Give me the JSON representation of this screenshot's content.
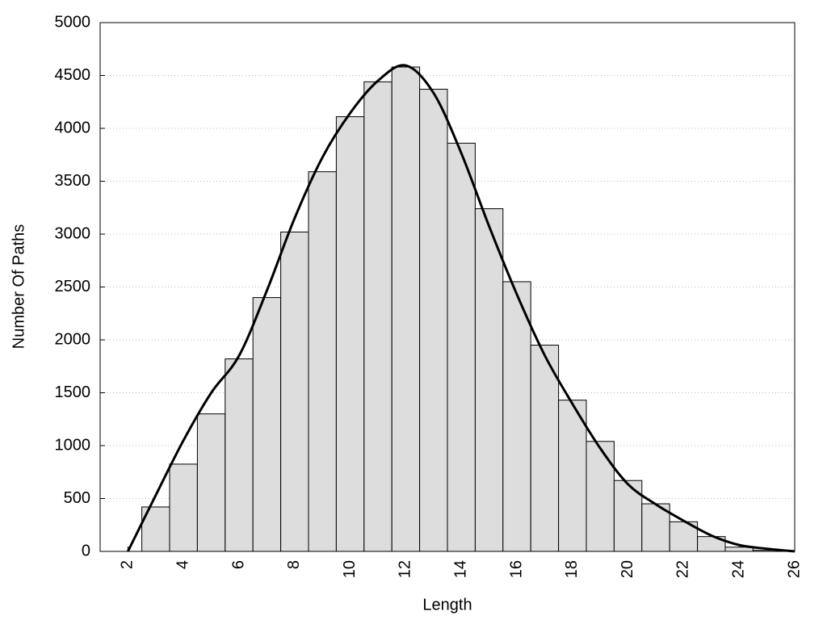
{
  "chart_data": {
    "type": "histogram",
    "xlabel": "Length",
    "ylabel": "Number Of Paths",
    "bins": [
      2.5,
      3.5,
      4.5,
      5.5,
      6.5,
      7.5,
      8.5,
      9.5,
      10.5,
      11.5,
      12.5,
      13.5,
      14.5,
      15.5,
      16.5,
      17.5,
      18.5,
      19.5,
      20.5,
      21.5,
      22.5,
      23.5,
      24.5,
      25.5
    ],
    "values": [
      420,
      825,
      1300,
      1820,
      2400,
      3020,
      3590,
      4110,
      4440,
      4580,
      4370,
      3860,
      3240,
      2550,
      1950,
      1430,
      1040,
      670,
      450,
      280,
      140,
      40,
      10
    ],
    "color": "#dddddd",
    "overlay": {
      "type": "line",
      "color": "#000000",
      "x": [
        2,
        3,
        4,
        5,
        6,
        7,
        8,
        9,
        10,
        11,
        12,
        13,
        14,
        15,
        16,
        17,
        18,
        19,
        20,
        21,
        22,
        23,
        24,
        25,
        26
      ],
      "values": [
        0,
        530,
        1050,
        1500,
        1850,
        2465,
        3150,
        3725,
        4145,
        4450,
        4595,
        4335,
        3765,
        3075,
        2430,
        1855,
        1395,
        975,
        635,
        445,
        290,
        150,
        60,
        25,
        0
      ]
    },
    "xlim": [
      1,
      26
    ],
    "ylim": [
      0,
      5000
    ],
    "xticks": [
      2,
      4,
      6,
      8,
      10,
      12,
      14,
      16,
      18,
      20,
      22,
      24,
      26
    ],
    "yticks": [
      0,
      500,
      1000,
      1500,
      2000,
      2500,
      3000,
      3500,
      4000,
      4500,
      5000
    ],
    "grid": true
  }
}
